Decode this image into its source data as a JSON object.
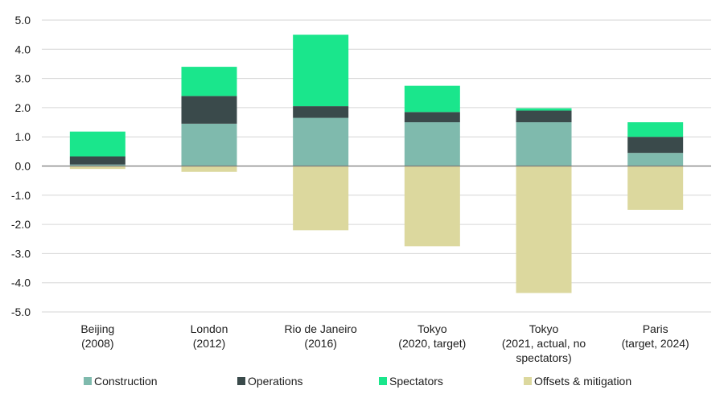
{
  "chart_data": {
    "type": "bar",
    "stacked": true,
    "categories": [
      [
        "Beijing",
        "(2008)"
      ],
      [
        "London",
        "(2012)"
      ],
      [
        "Rio de Janeiro",
        "(2016)"
      ],
      [
        "Tokyo",
        "(2020, target)"
      ],
      [
        "Tokyo",
        "(2021, actual, no",
        "spectators)"
      ],
      [
        "Paris",
        "(target, 2024)"
      ]
    ],
    "series": [
      {
        "name": "Construction",
        "color": "#7fbaad",
        "values": [
          0.05,
          1.45,
          1.65,
          1.5,
          1.5,
          0.45
        ]
      },
      {
        "name": "Operations",
        "color": "#3a4a4b",
        "values": [
          0.28,
          0.95,
          0.4,
          0.35,
          0.4,
          0.55
        ]
      },
      {
        "name": "Spectators",
        "color": "#1ae68c",
        "values": [
          0.85,
          1.0,
          2.45,
          0.9,
          0.08,
          0.5
        ]
      },
      {
        "name": "Offsets & mitigation",
        "color": "#dcd89e",
        "values": [
          -0.1,
          -0.2,
          -2.2,
          -2.75,
          -4.35,
          -1.5
        ]
      }
    ],
    "ylim": [
      -5.0,
      5.0
    ],
    "yticks": [
      "5.0",
      "4.0",
      "3.0",
      "2.0",
      "1.0",
      "0.0",
      "-1.0",
      "-2.0",
      "-3.0",
      "-4.0",
      "-5.0"
    ],
    "ytick_values": [
      5,
      4,
      3,
      2,
      1,
      0,
      -1,
      -2,
      -3,
      -4,
      -5
    ],
    "title": "",
    "xlabel": "",
    "ylabel": "",
    "grid": true,
    "legend_position": "bottom"
  }
}
